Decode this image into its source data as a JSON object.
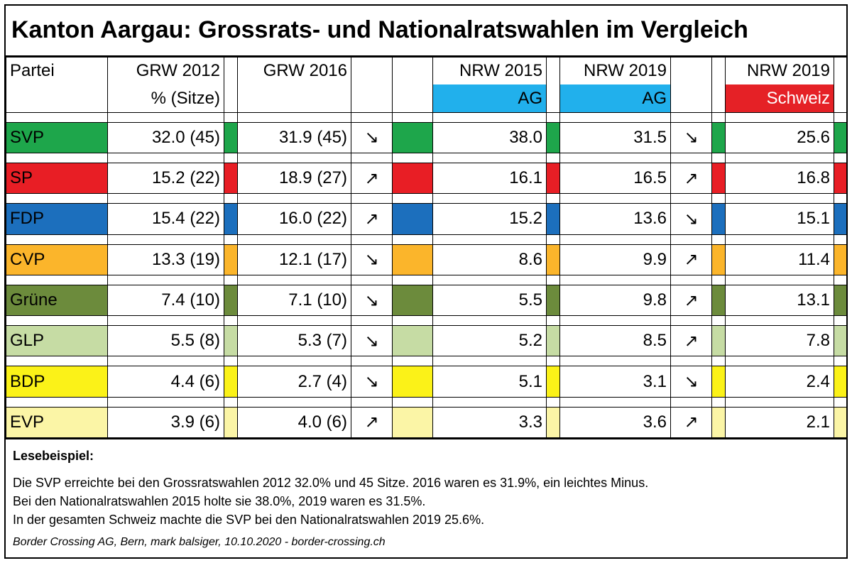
{
  "title": "Kanton Aargau: Grossrats- und Nationalratswahlen im Vergleich",
  "headers": {
    "partei": "Partei",
    "grw2012": "GRW 2012",
    "grw2012_sub": "% (Sitze)",
    "grw2016": "GRW 2016",
    "nrw2015": "NRW 2015",
    "nrw2015_sub": "AG",
    "nrw2019ag": "NRW 2019",
    "nrw2019ag_sub": "AG",
    "nrw2019ch": "NRW 2019",
    "nrw2019ch_sub": "Schweiz"
  },
  "header_colors": {
    "ag": "#21b0ec",
    "schweiz": "#e52126"
  },
  "parties": [
    {
      "name": "SVP",
      "color": "#1ea64b",
      "grw2012": "32.0 (45)",
      "grw2016": "31.9 (45)",
      "trend_grw": "down",
      "nrw2015": "38.0",
      "nrw2019": "31.5",
      "trend_nrw": "down",
      "ch2019": "25.6"
    },
    {
      "name": "SP",
      "color": "#e81e25",
      "grw2012": "15.2 (22)",
      "grw2016": "18.9 (27)",
      "trend_grw": "up",
      "nrw2015": "16.1",
      "nrw2019": "16.5",
      "trend_nrw": "up",
      "ch2019": "16.8"
    },
    {
      "name": "FDP",
      "color": "#1c6fbd",
      "grw2012": "15.4 (22)",
      "grw2016": "16.0 (22)",
      "trend_grw": "up",
      "nrw2015": "15.2",
      "nrw2019": "13.6",
      "trend_nrw": "down",
      "ch2019": "15.1"
    },
    {
      "name": "CVP",
      "color": "#fbb52b",
      "grw2012": "13.3 (19)",
      "grw2016": "12.1 (17)",
      "trend_grw": "down",
      "nrw2015": "8.6",
      "nrw2019": "9.9",
      "trend_nrw": "up",
      "ch2019": "11.4"
    },
    {
      "name": "Grüne",
      "color": "#6c8b3c",
      "grw2012": "7.4 (10)",
      "grw2016": "7.1 (10)",
      "trend_grw": "down",
      "nrw2015": "5.5",
      "nrw2019": "9.8",
      "trend_nrw": "up",
      "ch2019": "13.1"
    },
    {
      "name": "GLP",
      "color": "#c6dca4",
      "grw2012": "5.5 (8)",
      "grw2016": "5.3 (7)",
      "trend_grw": "down",
      "nrw2015": "5.2",
      "nrw2019": "8.5",
      "trend_nrw": "up",
      "ch2019": "7.8"
    },
    {
      "name": "BDP",
      "color": "#fbf218",
      "grw2012": "4.4 (6)",
      "grw2016": "2.7 (4)",
      "trend_grw": "down",
      "nrw2015": "5.1",
      "nrw2019": "3.1",
      "trend_nrw": "down",
      "ch2019": "2.4"
    },
    {
      "name": "EVP",
      "color": "#fbf5a6",
      "grw2012": "3.9 (6)",
      "grw2016": "4.0 (6)",
      "trend_grw": "up",
      "nrw2015": "3.3",
      "nrw2019": "3.6",
      "trend_nrw": "up",
      "ch2019": "2.1"
    }
  ],
  "arrows": {
    "up": "↗",
    "down": "↘"
  },
  "notes": {
    "heading": "Lesebeispiel:",
    "lines": [
      "Die SVP erreichte bei den Grossratswahlen 2012 32.0% und 45 Sitze. 2016 waren es 31.9%, ein leichtes Minus.",
      "Bei den Nationalratswahlen 2015 holte sie 38.0%, 2019 waren es 31.5%.",
      "In der gesamten Schweiz machte die SVP bei den Nationalratswahlen 2019 25.6%."
    ],
    "credit": "Border Crossing AG, Bern, mark balsiger, 10.10.2020 - border-crossing.ch"
  }
}
